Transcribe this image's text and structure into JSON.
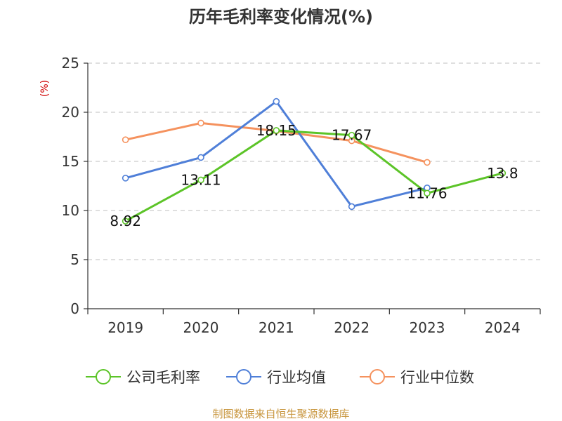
{
  "colors": {
    "company": "#5cc428",
    "industry_avg": "#4f7fd8",
    "industry_median": "#f5925e",
    "grid": "#cccccc",
    "axis": "#333333",
    "y_unit": "#d00000",
    "source": "#c8963e"
  },
  "source_text": "制图数据来自恒生聚源数据库",
  "chart_data": {
    "type": "line",
    "title": "历年毛利率变化情况(%)",
    "ylabel": "(%)",
    "xlabel": "",
    "categories": [
      "2019",
      "2020",
      "2021",
      "2022",
      "2023",
      "2024"
    ],
    "ylim": [
      0,
      25
    ],
    "yticks": [
      0,
      5,
      10,
      15,
      20,
      25
    ],
    "grid": true,
    "legend_position": "bottom",
    "series": [
      {
        "name": "公司毛利率",
        "color_key": "company",
        "values": [
          8.92,
          13.11,
          18.15,
          17.67,
          11.76,
          13.8
        ],
        "labels": [
          "8.92",
          "13.11",
          "18.15",
          "17.67",
          "11.76",
          "13.8"
        ]
      },
      {
        "name": "行业均值",
        "color_key": "industry_avg",
        "values": [
          13.3,
          15.4,
          21.1,
          10.4,
          12.3,
          null
        ]
      },
      {
        "name": "行业中位数",
        "color_key": "industry_median",
        "values": [
          17.2,
          18.9,
          18.1,
          17.1,
          14.9,
          null
        ]
      }
    ]
  }
}
